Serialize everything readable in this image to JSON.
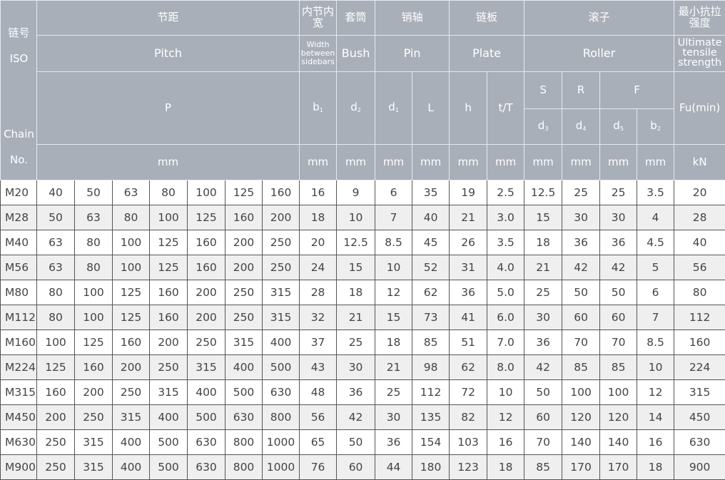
{
  "header": {
    "chain_cn": "链号",
    "chain_iso": "ISO",
    "chain_en1": "Chain",
    "chain_en2": "No.",
    "pitch_cn": "节距",
    "pitch_en": "Pitch",
    "pitch_sym": "P",
    "pitch_unit": "mm",
    "width_cn": "内节内宽",
    "width_en": "Width between sidebars",
    "width_sym": "b",
    "width_sub": "1",
    "width_unit": "mm",
    "bush_cn": "套筒",
    "bush_en": "Bush",
    "bush_sym": "d",
    "bush_sub": "2",
    "bush_unit": "mm",
    "pin_cn": "销轴",
    "pin_en": "Pin",
    "pin_d_sym": "d",
    "pin_d_sub": "1",
    "pin_l_sym": "L",
    "pin_d_unit": "mm",
    "pin_l_unit": "mm",
    "plate_cn": "链板",
    "plate_en": "Plate",
    "plate_h_sym": "h",
    "plate_t_sym": "t/T",
    "plate_h_unit": "mm",
    "plate_t_unit": "mm",
    "roller_cn": "滚子",
    "roller_en": "Roller",
    "roller_s": "S",
    "roller_r": "R",
    "roller_f": "F",
    "d3": "d",
    "d3_sub": "3",
    "d4": "d",
    "d4_sub": "4",
    "d5": "d",
    "d5_sub": "5",
    "b2": "b",
    "b2_sub": "2",
    "roller_units": [
      "mm",
      "mm",
      "mm",
      "mm"
    ],
    "fu_cn": "最小抗拉强度",
    "fu_en": "Ultimate tensile strength",
    "fu_sym": "Fu(min)",
    "fu_unit": "kN"
  },
  "rows": [
    [
      "M20",
      "40",
      "50",
      "63",
      "80",
      "100",
      "125",
      "160",
      "16",
      "9",
      "6",
      "35",
      "19",
      "2.5",
      "12.5",
      "25",
      "25",
      "3.5",
      "20"
    ],
    [
      "M28",
      "50",
      "63",
      "80",
      "100",
      "125",
      "160",
      "200",
      "18",
      "10",
      "7",
      "40",
      "21",
      "3.0",
      "15",
      "30",
      "30",
      "4",
      "28"
    ],
    [
      "M40",
      "63",
      "80",
      "100",
      "125",
      "160",
      "200",
      "250",
      "20",
      "12.5",
      "8.5",
      "45",
      "26",
      "3.5",
      "18",
      "36",
      "36",
      "4.5",
      "40"
    ],
    [
      "M56",
      "63",
      "80",
      "100",
      "125",
      "160",
      "200",
      "250",
      "24",
      "15",
      "10",
      "52",
      "31",
      "4.0",
      "21",
      "42",
      "42",
      "5",
      "56"
    ],
    [
      "M80",
      "80",
      "100",
      "125",
      "160",
      "200",
      "250",
      "315",
      "28",
      "18",
      "12",
      "62",
      "36",
      "5.0",
      "25",
      "50",
      "50",
      "6",
      "80"
    ],
    [
      "M112",
      "80",
      "100",
      "125",
      "160",
      "200",
      "250",
      "315",
      "32",
      "21",
      "15",
      "73",
      "41",
      "6.0",
      "30",
      "60",
      "60",
      "7",
      "112"
    ],
    [
      "M160",
      "100",
      "125",
      "160",
      "200",
      "250",
      "315",
      "400",
      "37",
      "25",
      "18",
      "85",
      "51",
      "7.0",
      "36",
      "70",
      "70",
      "8.5",
      "160"
    ],
    [
      "M224",
      "125",
      "160",
      "200",
      "250",
      "315",
      "400",
      "500",
      "43",
      "30",
      "21",
      "98",
      "62",
      "8.0",
      "42",
      "85",
      "85",
      "10",
      "224"
    ],
    [
      "M315",
      "160",
      "200",
      "250",
      "315",
      "400",
      "500",
      "630",
      "48",
      "36",
      "25",
      "112",
      "72",
      "10",
      "50",
      "100",
      "100",
      "12",
      "315"
    ],
    [
      "M450",
      "200",
      "250",
      "315",
      "400",
      "500",
      "630",
      "800",
      "56",
      "42",
      "30",
      "135",
      "82",
      "12",
      "60",
      "120",
      "120",
      "14",
      "450"
    ],
    [
      "M630",
      "250",
      "315",
      "400",
      "500",
      "630",
      "800",
      "1000",
      "65",
      "50",
      "36",
      "154",
      "103",
      "16",
      "70",
      "140",
      "140",
      "16",
      "630"
    ],
    [
      "M900",
      "250",
      "315",
      "400",
      "500",
      "630",
      "800",
      "1000",
      "76",
      "60",
      "44",
      "180",
      "123",
      "18",
      "85",
      "170",
      "170",
      "18",
      "900"
    ]
  ]
}
